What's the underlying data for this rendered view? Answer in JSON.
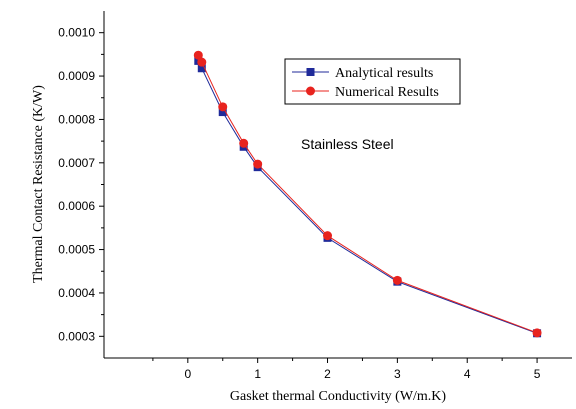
{
  "chart_data": {
    "type": "line",
    "xlabel": "Gasket thermal Conductivity (W/m.K)",
    "ylabel": "Thermal Contact Resistance (K/W)",
    "xlim": [
      -1.2,
      5.5
    ],
    "ylim": [
      0.00025,
      0.00105
    ],
    "x_ticks": [
      0,
      1,
      2,
      3,
      4,
      5
    ],
    "y_ticks": [
      0.0003,
      0.0004,
      0.0005,
      0.0006,
      0.0007,
      0.0008,
      0.0009,
      0.001
    ],
    "y_tick_labels": [
      "0.0003",
      "0.0004",
      "0.0005",
      "0.0006",
      "0.0007",
      "0.0008",
      "0.0009",
      "0.0010"
    ],
    "grid": false,
    "legend_position": "top-right",
    "annotation": "Stainless Steel",
    "series": [
      {
        "name": "Analytical results",
        "marker": "square",
        "color": "#1f2a9a",
        "x": [
          0.15,
          0.2,
          0.5,
          0.8,
          1.0,
          2.0,
          3.0,
          5.0
        ],
        "y": [
          0.000935,
          0.000918,
          0.000817,
          0.000737,
          0.00069,
          0.000527,
          0.000426,
          0.000307
        ]
      },
      {
        "name": "Numerical Results",
        "marker": "circle",
        "color": "#e8231e",
        "x": [
          0.15,
          0.2,
          0.5,
          0.8,
          1.0,
          2.0,
          3.0,
          5.0
        ],
        "y": [
          0.000948,
          0.000932,
          0.000829,
          0.000745,
          0.000697,
          0.000532,
          0.000429,
          0.000308
        ]
      }
    ]
  }
}
